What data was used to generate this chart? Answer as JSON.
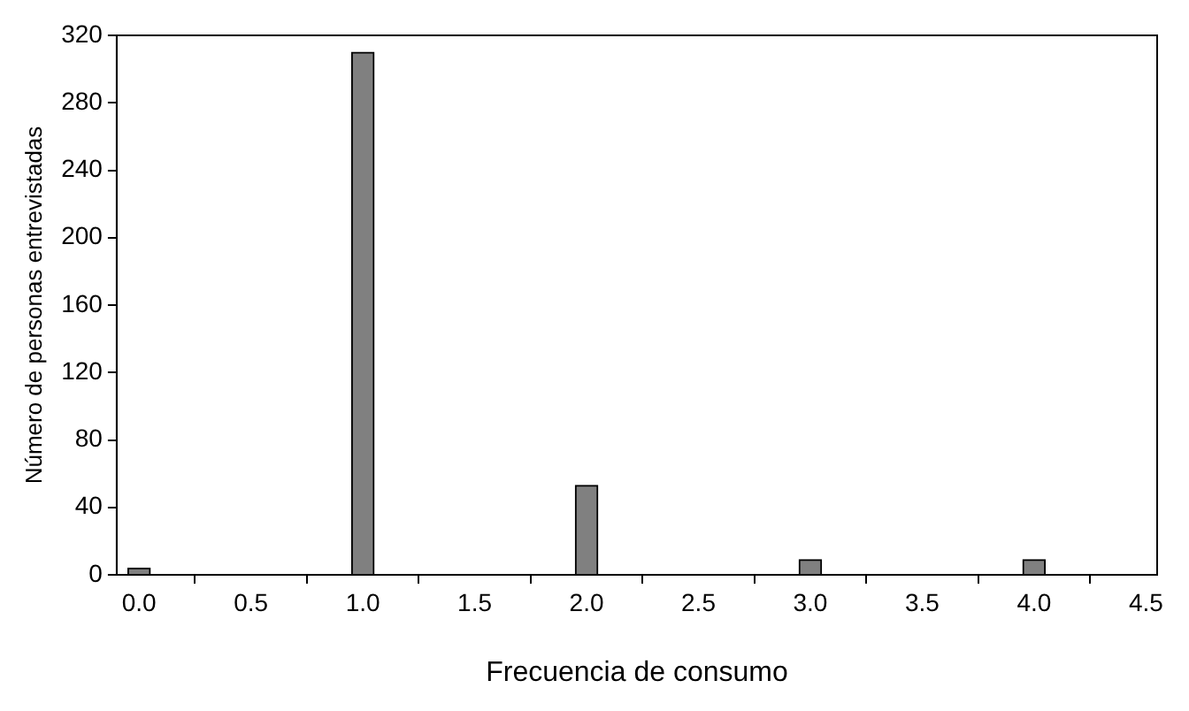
{
  "chart_data": {
    "type": "histogram",
    "xlabel": "Frecuencia de consumo",
    "ylabel": "Número de personas entrevistadas",
    "bins": [
      -0.05,
      0.05,
      0.95,
      1.05,
      1.95,
      2.05,
      2.95,
      3.05,
      3.95,
      4.05
    ],
    "values": [
      4,
      0,
      310,
      0,
      53,
      0,
      9,
      0,
      9
    ],
    "color": "#808080",
    "xlim": [
      -0.1,
      4.55
    ],
    "xticks": [
      {
        "value": 0,
        "label": "0.0"
      },
      0.5,
      {
        "value": 1,
        "label": "1.0"
      },
      1.5,
      {
        "value": 2,
        "label": "2.0"
      },
      2.5,
      {
        "value": 3,
        "label": "3.0"
      },
      3.5,
      {
        "value": 4,
        "label": "4.0"
      },
      4.5
    ],
    "ylim": [
      0,
      320
    ],
    "yticks": [
      0,
      40,
      80,
      120,
      160,
      200,
      240,
      280,
      320
    ],
    "grid": false,
    "legend": false
  }
}
